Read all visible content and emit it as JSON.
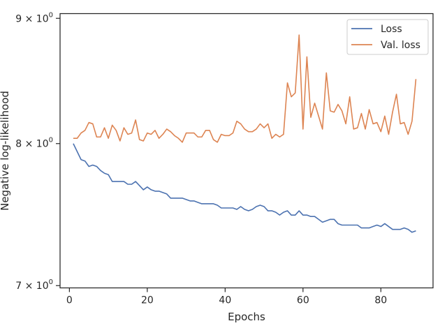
{
  "chart_data": {
    "type": "line",
    "title": "",
    "xlabel": "Epochs",
    "ylabel": "Negative log-likelihood",
    "yscale": "log",
    "xlim": [
      -2.4,
      93.4
    ],
    "ylim": [
      6.985,
      9.04
    ],
    "x_ticks": [
      0,
      20,
      40,
      60,
      80
    ],
    "y_ticks": [
      {
        "value": 7,
        "base": "7",
        "exp": "0"
      },
      {
        "value": 8,
        "base": "8",
        "exp": "0"
      },
      {
        "value": 9,
        "base": "9",
        "exp": "0"
      }
    ],
    "y_tick_separator": "×10",
    "grid": false,
    "legend_position": "top-right",
    "x": [
      1,
      2,
      3,
      4,
      5,
      6,
      7,
      8,
      9,
      10,
      11,
      12,
      13,
      14,
      15,
      16,
      17,
      18,
      19,
      20,
      21,
      22,
      23,
      24,
      25,
      26,
      27,
      28,
      29,
      30,
      31,
      32,
      33,
      34,
      35,
      36,
      37,
      38,
      39,
      40,
      41,
      42,
      43,
      44,
      45,
      46,
      47,
      48,
      49,
      50,
      51,
      52,
      53,
      54,
      55,
      56,
      57,
      58,
      59,
      60,
      61,
      62,
      63,
      64,
      65,
      66,
      67,
      68,
      69,
      70,
      71,
      72,
      73,
      74,
      75,
      76,
      77,
      78,
      79,
      80,
      81,
      82,
      83,
      84,
      85,
      86,
      87,
      88,
      89
    ],
    "series": [
      {
        "name": "Loss",
        "color": "#4c72b0",
        "values": [
          8.0,
          7.94,
          7.88,
          7.87,
          7.83,
          7.84,
          7.83,
          7.8,
          7.78,
          7.77,
          7.72,
          7.72,
          7.72,
          7.72,
          7.7,
          7.7,
          7.72,
          7.69,
          7.66,
          7.68,
          7.66,
          7.65,
          7.65,
          7.64,
          7.63,
          7.6,
          7.6,
          7.6,
          7.6,
          7.59,
          7.58,
          7.58,
          7.57,
          7.56,
          7.56,
          7.56,
          7.56,
          7.55,
          7.53,
          7.53,
          7.53,
          7.53,
          7.52,
          7.54,
          7.52,
          7.51,
          7.52,
          7.54,
          7.55,
          7.54,
          7.51,
          7.51,
          7.5,
          7.48,
          7.5,
          7.51,
          7.48,
          7.48,
          7.51,
          7.48,
          7.48,
          7.47,
          7.47,
          7.45,
          7.43,
          7.44,
          7.45,
          7.45,
          7.42,
          7.41,
          7.41,
          7.41,
          7.41,
          7.41,
          7.39,
          7.39,
          7.39,
          7.4,
          7.41,
          7.4,
          7.42,
          7.4,
          7.38,
          7.38,
          7.38,
          7.39,
          7.38,
          7.36,
          7.37
        ]
      },
      {
        "name": "Val. loss",
        "color": "#dd8452",
        "values": [
          8.04,
          8.04,
          8.08,
          8.1,
          8.16,
          8.15,
          8.05,
          8.05,
          8.12,
          8.04,
          8.14,
          8.1,
          8.02,
          8.12,
          8.07,
          8.08,
          8.18,
          8.03,
          8.02,
          8.08,
          8.07,
          8.1,
          8.04,
          8.07,
          8.11,
          8.09,
          8.06,
          8.04,
          8.01,
          8.08,
          8.08,
          8.08,
          8.05,
          8.05,
          8.1,
          8.1,
          8.03,
          8.01,
          8.07,
          8.06,
          8.06,
          8.08,
          8.17,
          8.15,
          8.11,
          8.09,
          8.09,
          8.11,
          8.15,
          8.12,
          8.15,
          8.04,
          8.07,
          8.05,
          8.07,
          8.47,
          8.36,
          8.39,
          8.86,
          8.11,
          8.68,
          8.2,
          8.31,
          8.21,
          8.11,
          8.55,
          8.25,
          8.24,
          8.3,
          8.25,
          8.15,
          8.36,
          8.11,
          8.12,
          8.23,
          8.11,
          8.26,
          8.15,
          8.16,
          8.09,
          8.21,
          8.07,
          8.24,
          8.38,
          8.15,
          8.16,
          8.07,
          8.17,
          8.5
        ]
      }
    ]
  }
}
